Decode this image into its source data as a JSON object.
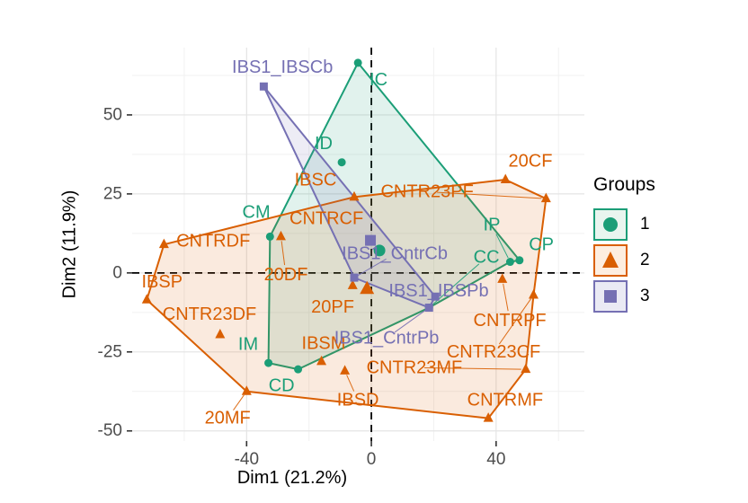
{
  "axes": {
    "xlabel": "Dim1 (21.2%)",
    "ylabel": "Dim2 (11.9%)",
    "xticks": [
      -40,
      0,
      40
    ],
    "yticks": [
      -50,
      -25,
      0,
      25,
      50
    ],
    "x_minor": [
      -60,
      -20,
      20,
      60
    ],
    "y_minor": [
      -37.5,
      -12.5,
      12.5,
      37.5,
      62.5
    ],
    "xlim": [
      -76.7,
      68.3
    ],
    "ylim": [
      -53.2,
      71.3
    ],
    "grid": true,
    "grid_major_color": "#e4e4e4",
    "grid_minor_color": "#f1f1f1",
    "tick_label_color": "#4d4d4d",
    "tick_mark_color": "#333333",
    "guide_lines": {
      "x": 0,
      "y": 0,
      "color": "#000000",
      "dash": "8,6"
    }
  },
  "legend": {
    "title": "Groups",
    "position": "right",
    "entries": [
      {
        "label": "1",
        "shape": "circle",
        "color": "#1B9E77",
        "key_fill": "#e9f5ef"
      },
      {
        "label": "2",
        "shape": "triangle",
        "color": "#D95F02",
        "key_fill": "#fdeee0"
      },
      {
        "label": "3",
        "shape": "square",
        "color": "#7570B3",
        "key_fill": "#eaeaf4"
      }
    ]
  },
  "chart_data": {
    "type": "scatter",
    "title": "",
    "xlabel": "Dim1 (21.2%)",
    "ylabel": "Dim2 (11.9%)",
    "hull_fill_opacity": 0.13,
    "series": [
      {
        "name": "1",
        "shape": "circle",
        "color": "#1B9E77",
        "points": [
          {
            "label": "IC",
            "x": -4.3,
            "y": 66.5,
            "lx": 2.3,
            "ly": 61
          },
          {
            "label": "ID",
            "x": -9.5,
            "y": 35,
            "lx": -15.3,
            "ly": 40.9
          },
          {
            "label": "CM",
            "x": -32.5,
            "y": 11.5,
            "lx": -36.9,
            "ly": 19.1
          },
          {
            "label": "IM",
            "x": -33,
            "y": -28.5,
            "lx": -39.5,
            "ly": -22.6
          },
          {
            "label": "CD",
            "x": -23.5,
            "y": -30.5,
            "lx": -28.8,
            "ly": -35.7
          },
          {
            "label": "IP",
            "x": 44.5,
            "y": 3.5,
            "lx": 38.6,
            "ly": 15.1,
            "leader": true
          },
          {
            "label": "CP",
            "x": 47.5,
            "y": 4,
            "lx": 54.5,
            "ly": 8.9
          },
          {
            "label": "CC",
            "x": 18.5,
            "y": -11,
            "lx": 36.9,
            "ly": 4.9,
            "leader": true
          }
        ],
        "mean": {
          "x": 2.6,
          "y": 7.1
        },
        "hull": [
          "IC",
          "CP",
          "IP",
          "CC",
          "CD",
          "IM",
          "CM"
        ]
      },
      {
        "name": "2",
        "shape": "triangle",
        "color": "#D95F02",
        "points": [
          {
            "label": "CNTRDF",
            "x": -66.5,
            "y": 9,
            "lx": -50.7,
            "ly": 10
          },
          {
            "label": "IBSC",
            "x": -5.5,
            "y": 24,
            "lx": -17.9,
            "ly": 29.4
          },
          {
            "label": "CNTRCF",
            "x": -0.2,
            "y": 10,
            "lx": -14.4,
            "ly": 17.1
          },
          {
            "label": "20CF",
            "x": 43,
            "y": 29.5,
            "lx": 51,
            "ly": 35.4
          },
          {
            "label": "CNTR23PF",
            "x": 56,
            "y": 23.5,
            "lx": 17.9,
            "ly": 25.7,
            "leader": true
          },
          {
            "label": "CNTR23CF",
            "x": 52,
            "y": -7,
            "lx": 39.2,
            "ly": -25.1,
            "leader": true
          },
          {
            "label": "CNTR23MF",
            "x": 49.5,
            "y": -30.5,
            "lx": 13.8,
            "ly": -30,
            "leader": true
          },
          {
            "label": "CNTRMF",
            "x": 37.5,
            "y": -46,
            "lx": 42.9,
            "ly": -40.3
          },
          {
            "label": "CNTRPF",
            "x": 42,
            "y": -2,
            "lx": 44.4,
            "ly": -15.1,
            "leader": true
          },
          {
            "label": "20MF",
            "x": -40,
            "y": -37.5,
            "lx": -46.1,
            "ly": -46,
            "leader": true
          },
          {
            "label": "IBSP",
            "x": -72,
            "y": -8.5,
            "lx": -67.1,
            "ly": -2.9
          },
          {
            "label": "20DF",
            "x": -29,
            "y": 11.5,
            "lx": -27.4,
            "ly": -0.6,
            "leader": true
          },
          {
            "label": "CNTR23DF",
            "x": -48.5,
            "y": -19.5,
            "lx": -51.9,
            "ly": -13.1
          },
          {
            "label": "20PF",
            "x": -6,
            "y": -4,
            "lx": -12.4,
            "ly": -10.9
          },
          {
            "label": "IBSM",
            "x": -16,
            "y": -28,
            "lx": -15.3,
            "ly": -22.3
          },
          {
            "label": "IBSD",
            "x": -8.5,
            "y": -31,
            "lx": -4.3,
            "ly": -40.3,
            "leader": true
          }
        ],
        "mean": {
          "x": -1.4,
          "y": -5.1
        },
        "hull": [
          "CNTRDF",
          "IBSC",
          "20CF",
          "CNTR23PF",
          "CNTR23CF",
          "CNTR23MF",
          "CNTRMF",
          "20MF",
          "IBSP"
        ]
      },
      {
        "name": "3",
        "shape": "square",
        "color": "#7570B3",
        "points": [
          {
            "label": "IBS1_IBSCb",
            "x": -34.5,
            "y": 59,
            "lx": -28.5,
            "ly": 65.1
          },
          {
            "label": "IBS1_CntrCb",
            "x": -5.5,
            "y": -1.5,
            "lx": 7.5,
            "ly": 6,
            "leader": true
          },
          {
            "label": "IBS1_IBSPb",
            "x": 20.5,
            "y": -7.5,
            "lx": 21.6,
            "ly": -5.7
          },
          {
            "label": "IBS1_CntrPb",
            "x": 18.5,
            "y": -11,
            "lx": 4.9,
            "ly": -20.6,
            "leader": true
          }
        ],
        "mean": {
          "x": -0.3,
          "y": 10.3
        },
        "hull": [
          "IBS1_IBSCb",
          "IBS1_IBSPb",
          "IBS1_CntrPb",
          "IBS1_CntrCb"
        ]
      }
    ]
  }
}
